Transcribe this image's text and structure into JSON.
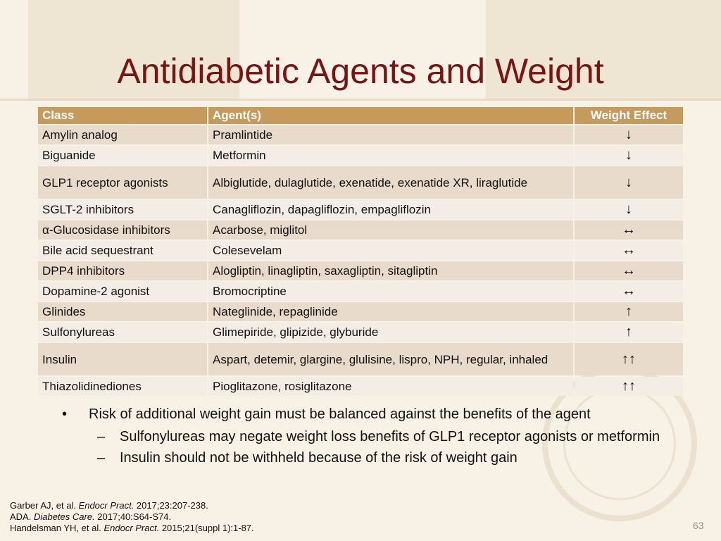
{
  "slide": {
    "title": "Antidiabetic Agents and Weight",
    "page_number": "63"
  },
  "table": {
    "headers": [
      "Class",
      "Agent(s)",
      "Weight Effect"
    ],
    "rows": [
      {
        "class": "Amylin analog",
        "agents": "Pramlintide",
        "effect": "↓"
      },
      {
        "class": "Biguanide",
        "agents": "Metformin",
        "effect": "↓"
      },
      {
        "class": "GLP1 receptor agonists",
        "agents": "Albiglutide, dulaglutide, exenatide, exenatide XR, liraglutide",
        "effect": "↓"
      },
      {
        "class": "SGLT-2 inhibitors",
        "agents": "Canagliflozin, dapagliflozin, empagliflozin",
        "effect": "↓"
      },
      {
        "class": "α-Glucosidase inhibitors",
        "agents": "Acarbose, miglitol",
        "effect": "↔"
      },
      {
        "class": "Bile acid sequestrant",
        "agents": "Colesevelam",
        "effect": "↔"
      },
      {
        "class": "DPP4 inhibitors",
        "agents": "Alogliptin, linagliptin, saxagliptin, sitagliptin",
        "effect": "↔"
      },
      {
        "class": "Dopamine-2 agonist",
        "agents": "Bromocriptine",
        "effect": "↔"
      },
      {
        "class": "Glinides",
        "agents": "Nateglinide, repaglinide",
        "effect": "↑"
      },
      {
        "class": "Sulfonylureas",
        "agents": "Glimepiride, glipizide, glyburide",
        "effect": "↑"
      },
      {
        "class": "Insulin",
        "agents": "Aspart, detemir, glargine, glulisine, lispro, NPH, regular, inhaled",
        "effect": "↑↑"
      },
      {
        "class": "Thiazolidinediones",
        "agents": "Pioglitazone, rosiglitazone",
        "effect": "↑↑"
      }
    ]
  },
  "bullets": {
    "main_mark": "•",
    "sub_mark": "–",
    "main": "Risk of additional weight gain must be balanced against the benefits of the agent",
    "sub": [
      "Sulfonylureas may negate weight loss benefits of GLP1 receptor agonists or metformin",
      "Insulin should not be withheld because of the risk of weight gain"
    ]
  },
  "references": [
    {
      "authors": "Garber AJ, et al. ",
      "journal": "Endocr Pract.",
      "rest": " 2017;23:207-238."
    },
    {
      "authors": "ADA. ",
      "journal": "Diabetes Care.",
      "rest": " 2017;40:S64-S74."
    },
    {
      "authors": "Handelsman YH, et al. ",
      "journal": "Endocr Pract.",
      "rest": " 2015;21(suppl 1):1-87."
    }
  ],
  "colors": {
    "title": "#7a1412",
    "header_bg": "#c59a5b",
    "row_odd": "#e9dbcc",
    "row_even": "#f4ede6",
    "background": "#f7f1e6"
  }
}
